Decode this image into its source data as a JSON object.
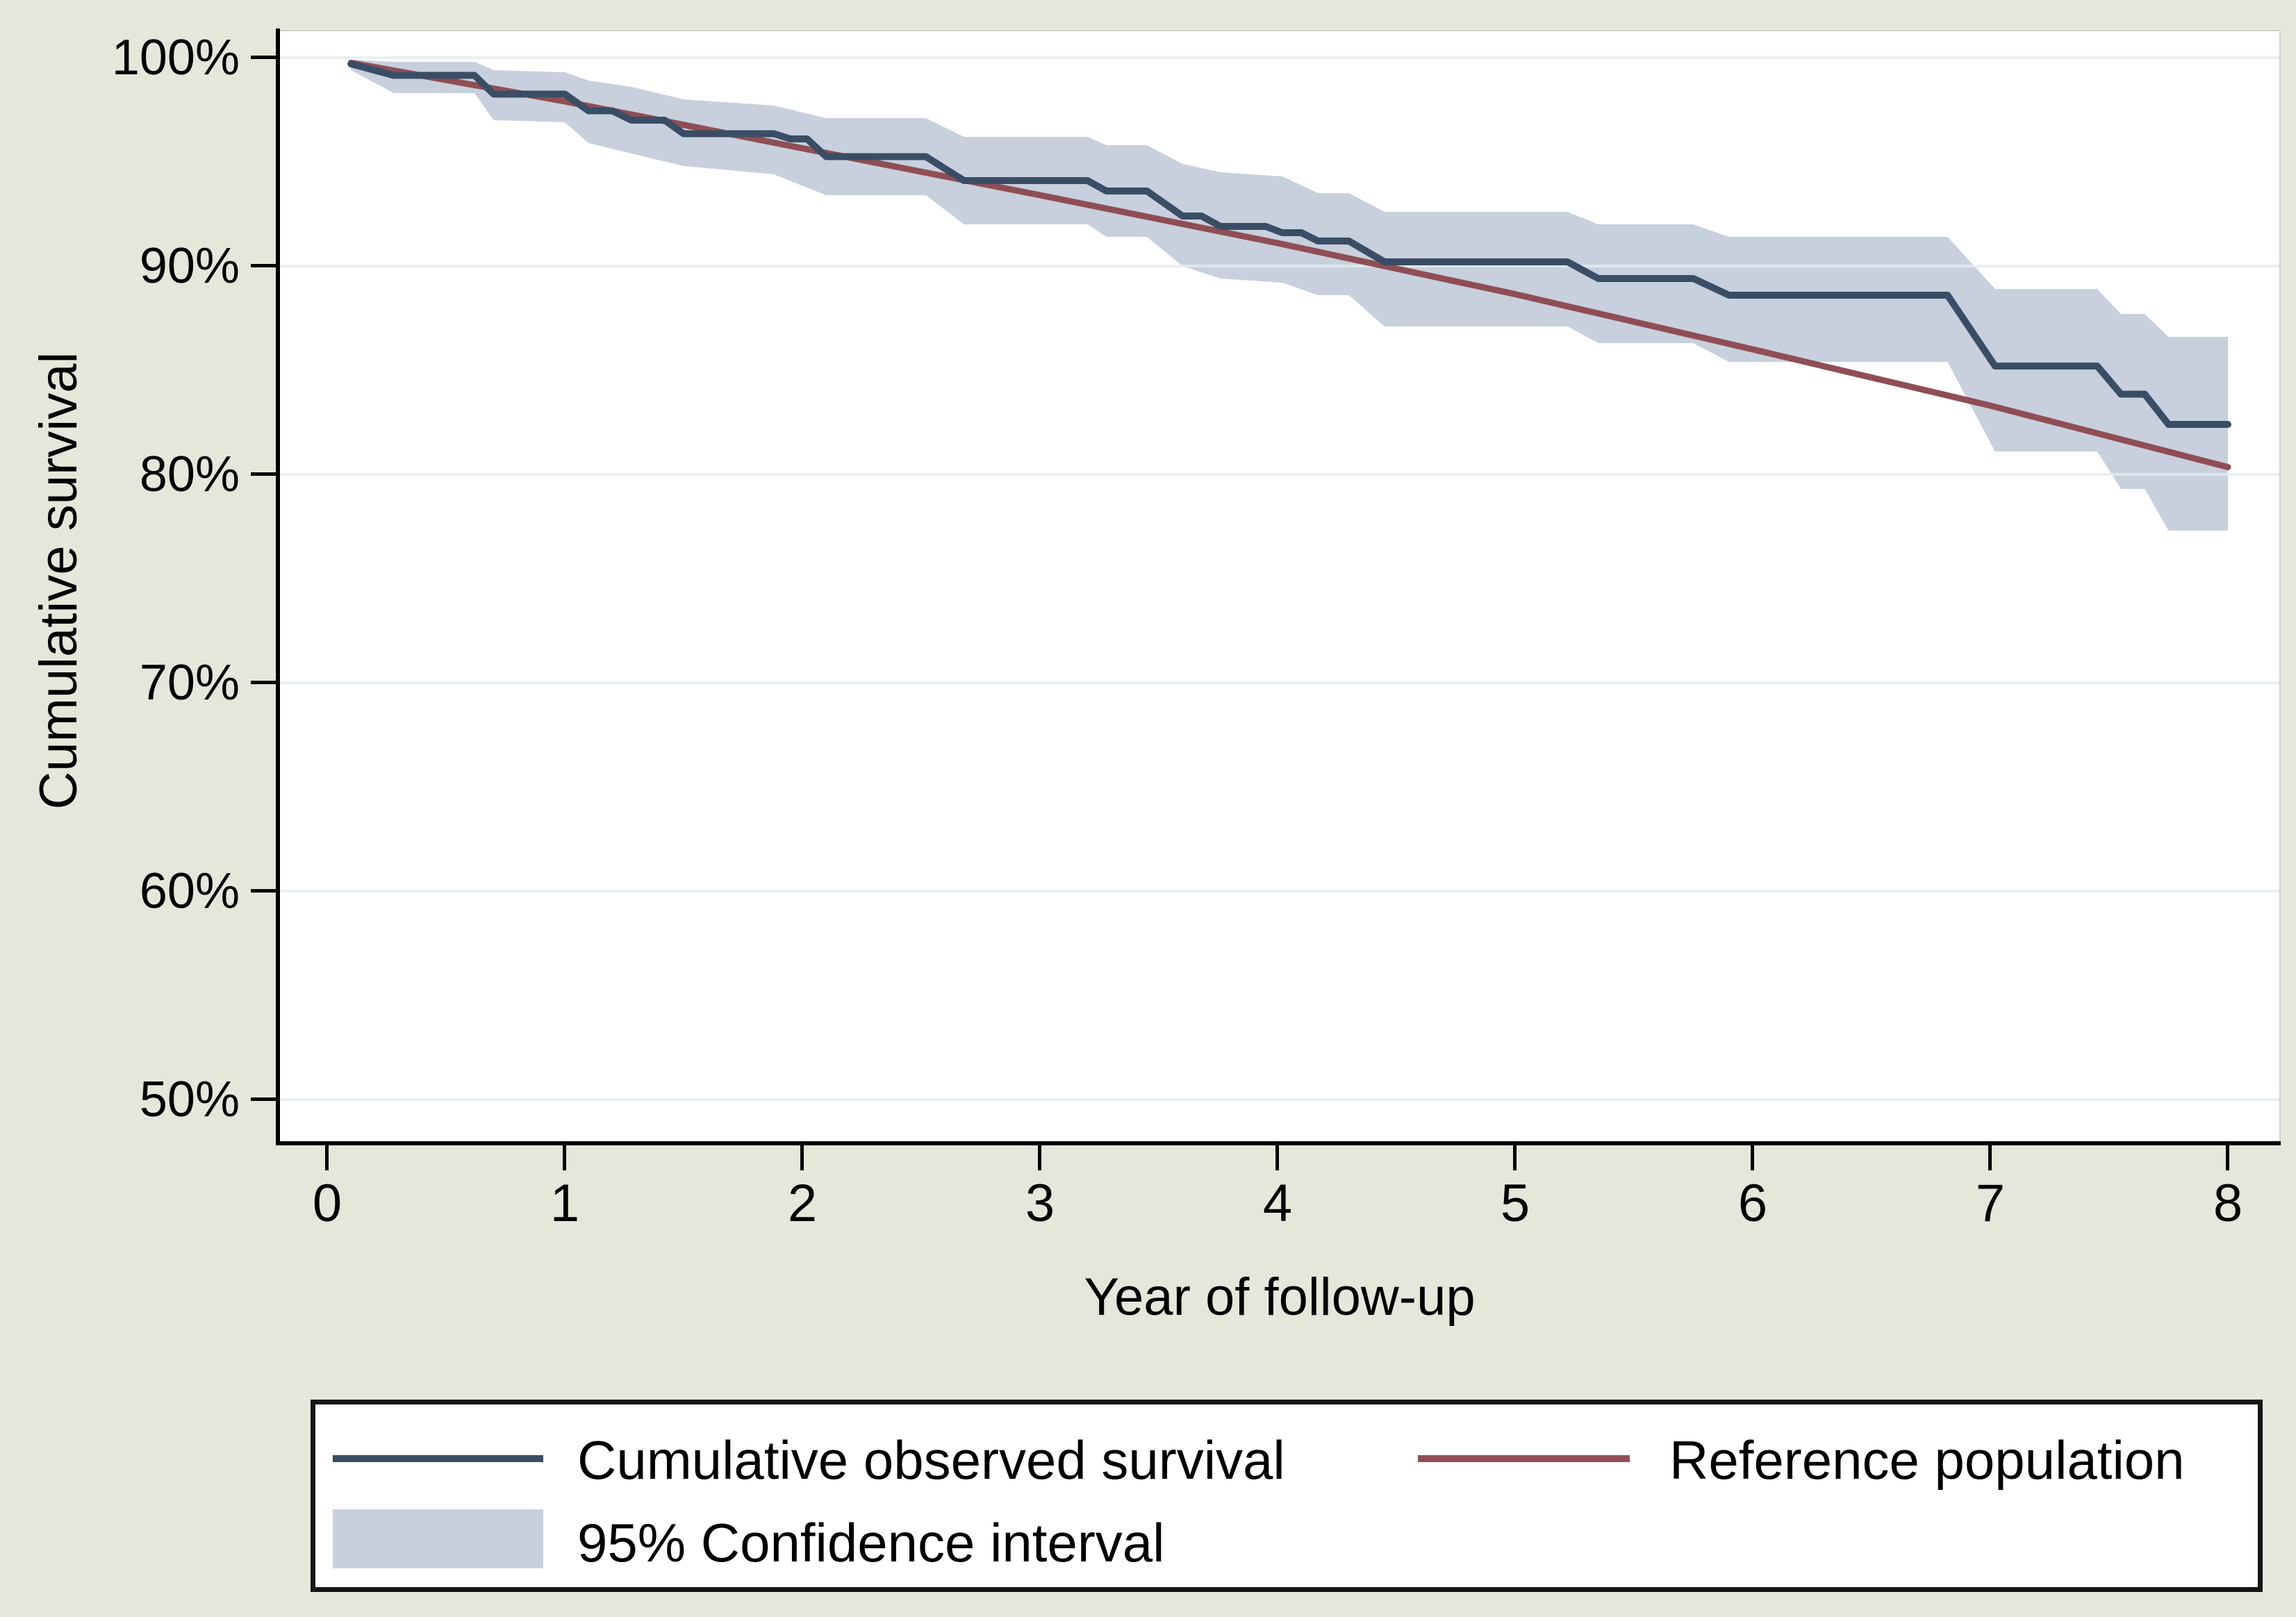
{
  "figure": {
    "background_color": "#e6e7da",
    "plot_background_color": "#ffffff",
    "gridline_color": "#e4edf0",
    "axis_color": "#000000",
    "plot_border_light_color": "#d2d3c5"
  },
  "y_axis": {
    "title": "Cumulative survival",
    "ticks": [
      {
        "label": "100%",
        "value": 100
      },
      {
        "label": "90%",
        "value": 90
      },
      {
        "label": "80%",
        "value": 80
      },
      {
        "label": "70%",
        "value": 70
      },
      {
        "label": "60%",
        "value": 60
      },
      {
        "label": "50%",
        "value": 50
      }
    ]
  },
  "x_axis": {
    "title": "Year of follow-up",
    "ticks": [
      {
        "label": "0",
        "value": 0
      },
      {
        "label": "1",
        "value": 1
      },
      {
        "label": "2",
        "value": 2
      },
      {
        "label": "3",
        "value": 3
      },
      {
        "label": "4",
        "value": 4
      },
      {
        "label": "5",
        "value": 5
      },
      {
        "label": "6",
        "value": 6
      },
      {
        "label": "7",
        "value": 7
      },
      {
        "label": "8",
        "value": 8
      }
    ]
  },
  "legend": {
    "items": [
      {
        "label": "Cumulative observed survival",
        "type": "line",
        "color": "#3a4d66"
      },
      {
        "label": "Reference population",
        "type": "line",
        "color": "#8f4e54"
      },
      {
        "label": "95% Confidence interval",
        "type": "area",
        "color": "#c8d0dd"
      }
    ]
  },
  "chart_data": {
    "type": "line",
    "title": "",
    "xlabel": "Year of follow-up",
    "ylabel": "Cumulative survival",
    "xlim": [
      -0.2,
      8.2
    ],
    "ylim": [
      48,
      101.3
    ],
    "x_ticks": [
      0,
      1,
      2,
      3,
      4,
      5,
      6,
      7,
      8
    ],
    "y_ticks_pct": [
      50,
      60,
      70,
      80,
      90,
      100
    ],
    "grid": true,
    "legend_position": "bottom",
    "series": [
      {
        "name": "Cumulative observed survival",
        "kind": "step-line",
        "color": "#3a4d66",
        "stroke_width": 10,
        "points": [
          [
            0.1,
            99.7
          ],
          [
            0.28,
            99.15
          ],
          [
            0.62,
            99.15
          ],
          [
            0.7,
            98.25
          ],
          [
            1.0,
            98.25
          ],
          [
            1.1,
            97.45
          ],
          [
            1.2,
            97.45
          ],
          [
            1.28,
            97.0
          ],
          [
            1.42,
            97.0
          ],
          [
            1.5,
            96.35
          ],
          [
            1.88,
            96.35
          ],
          [
            1.95,
            96.1
          ],
          [
            2.02,
            96.1
          ],
          [
            2.1,
            95.25
          ],
          [
            2.52,
            95.25
          ],
          [
            2.68,
            94.1
          ],
          [
            3.2,
            94.1
          ],
          [
            3.28,
            93.6
          ],
          [
            3.45,
            93.6
          ],
          [
            3.6,
            92.4
          ],
          [
            3.68,
            92.4
          ],
          [
            3.76,
            91.9
          ],
          [
            3.95,
            91.9
          ],
          [
            4.02,
            91.6
          ],
          [
            4.1,
            91.6
          ],
          [
            4.17,
            91.2
          ],
          [
            4.3,
            91.2
          ],
          [
            4.45,
            90.2
          ],
          [
            5.22,
            90.2
          ],
          [
            5.35,
            89.4
          ],
          [
            5.75,
            89.4
          ],
          [
            5.9,
            88.6
          ],
          [
            6.82,
            88.6
          ],
          [
            7.02,
            85.2
          ],
          [
            7.45,
            85.2
          ],
          [
            7.55,
            83.85
          ],
          [
            7.65,
            83.85
          ],
          [
            7.75,
            82.4
          ],
          [
            8.0,
            82.4
          ]
        ]
      },
      {
        "name": "Reference population",
        "kind": "line",
        "color": "#8f4e54",
        "stroke_width": 9,
        "points": [
          [
            0.1,
            99.75
          ],
          [
            1,
            97.9
          ],
          [
            2,
            95.65
          ],
          [
            3,
            93.4
          ],
          [
            4,
            91.1
          ],
          [
            5,
            88.65
          ],
          [
            6,
            86.0
          ],
          [
            7,
            83.3
          ],
          [
            8,
            80.35
          ]
        ]
      },
      {
        "name": "95% Confidence interval",
        "kind": "band",
        "color": "#c8d0dd",
        "upper": [
          [
            0.1,
            99.9
          ],
          [
            0.28,
            99.8
          ],
          [
            0.62,
            99.8
          ],
          [
            0.7,
            99.4
          ],
          [
            1.0,
            99.3
          ],
          [
            1.1,
            98.9
          ],
          [
            1.28,
            98.6
          ],
          [
            1.5,
            98.0
          ],
          [
            1.88,
            97.7
          ],
          [
            2.1,
            97.1
          ],
          [
            2.52,
            97.1
          ],
          [
            2.68,
            96.2
          ],
          [
            3.2,
            96.2
          ],
          [
            3.28,
            95.8
          ],
          [
            3.45,
            95.8
          ],
          [
            3.6,
            94.9
          ],
          [
            3.76,
            94.5
          ],
          [
            4.02,
            94.3
          ],
          [
            4.17,
            93.5
          ],
          [
            4.3,
            93.5
          ],
          [
            4.45,
            92.6
          ],
          [
            5.22,
            92.6
          ],
          [
            5.35,
            92.0
          ],
          [
            5.75,
            92.0
          ],
          [
            5.9,
            91.4
          ],
          [
            6.82,
            91.4
          ],
          [
            7.02,
            88.9
          ],
          [
            7.45,
            88.9
          ],
          [
            7.55,
            87.7
          ],
          [
            7.65,
            87.7
          ],
          [
            7.75,
            86.6
          ],
          [
            8.0,
            86.6
          ]
        ],
        "lower": [
          [
            0.1,
            99.4
          ],
          [
            0.28,
            98.3
          ],
          [
            0.62,
            98.3
          ],
          [
            0.7,
            97.0
          ],
          [
            1.0,
            96.9
          ],
          [
            1.1,
            95.9
          ],
          [
            1.28,
            95.4
          ],
          [
            1.5,
            94.8
          ],
          [
            1.88,
            94.4
          ],
          [
            2.1,
            93.4
          ],
          [
            2.52,
            93.4
          ],
          [
            2.68,
            92.0
          ],
          [
            3.2,
            92.0
          ],
          [
            3.28,
            91.4
          ],
          [
            3.45,
            91.4
          ],
          [
            3.6,
            90.0
          ],
          [
            3.76,
            89.4
          ],
          [
            4.02,
            89.2
          ],
          [
            4.17,
            88.6
          ],
          [
            4.3,
            88.6
          ],
          [
            4.45,
            87.1
          ],
          [
            5.22,
            87.1
          ],
          [
            5.35,
            86.3
          ],
          [
            5.75,
            86.3
          ],
          [
            5.9,
            85.4
          ],
          [
            6.82,
            85.4
          ],
          [
            7.02,
            81.1
          ],
          [
            7.45,
            81.1
          ],
          [
            7.55,
            79.3
          ],
          [
            7.65,
            79.3
          ],
          [
            7.75,
            77.3
          ],
          [
            8.0,
            77.3
          ]
        ]
      }
    ]
  }
}
